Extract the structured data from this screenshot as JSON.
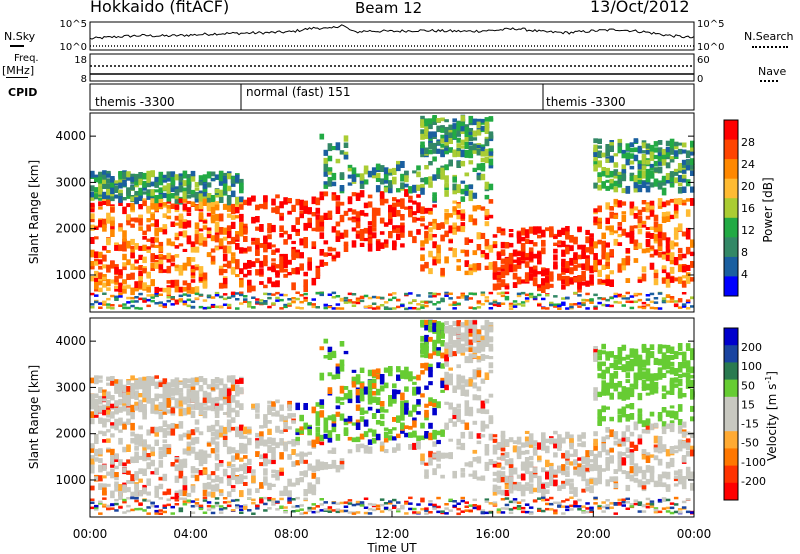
{
  "header": {
    "station": "Hokkaido (fitACF)",
    "beam": "Beam 12",
    "date": "13/Oct/2012"
  },
  "side_labels": {
    "nsky": "N.Sky",
    "freq": "Freq.",
    "freq_unit": "[MHz]",
    "cpid": "CPID",
    "nsearch": "N.Search",
    "nave": "Nave"
  },
  "chart_data": [
    {
      "type": "line",
      "panel": "N.Sky / N.Search",
      "ytick_labels_left": [
        "10^5",
        "10^0"
      ],
      "ytick_labels_right": [
        "10^5",
        "10^0"
      ],
      "y_scale": "log",
      "series": [
        {
          "x": [
            0,
            1,
            2,
            3,
            4,
            5,
            6,
            7,
            8,
            8.5,
            9,
            9.5,
            10,
            10.5,
            11,
            12,
            13,
            14,
            15,
            16,
            17,
            18,
            19,
            20,
            21,
            22,
            23,
            24
          ],
          "y": [
            1.8,
            2.2,
            2.5,
            2.4,
            2.6,
            2.9,
            3.0,
            3.1,
            3.3,
            3.8,
            4.2,
            3.9,
            4.8,
            3.2,
            3.5,
            3.4,
            3.6,
            3.5,
            3.4,
            3.6,
            4.0,
            3.3,
            3.1,
            3.5,
            3.8,
            3.3,
            2.5,
            2.0
          ]
        }
      ]
    },
    {
      "type": "line",
      "panel": "Freq / Nave",
      "ytick_labels_left": [
        "18",
        "8"
      ],
      "ytick_labels_right": [
        "60",
        "0"
      ],
      "series": [
        {
          "x": [
            0,
            24
          ],
          "y": [
            11,
            11
          ]
        },
        {
          "x": [
            0,
            24
          ],
          "y": [
            45,
            45
          ]
        }
      ]
    },
    {
      "type": "table",
      "panel": "CPID",
      "segments": [
        {
          "start": 0,
          "end": 6,
          "label": "themis -3300"
        },
        {
          "start": 6,
          "end": 18,
          "label": "normal (fast) 151"
        },
        {
          "start": 18,
          "end": 24,
          "label": "themis -3300"
        }
      ]
    },
    {
      "type": "heatmap",
      "panel": "Power",
      "ylabel": "Slant Range [km]",
      "ylim": [
        200,
        4500
      ],
      "yticks": [
        1000,
        2000,
        3000,
        4000
      ],
      "xlim": [
        0,
        24
      ],
      "colorbar": {
        "label": "Power [dB]",
        "tick_labels": [
          "28",
          "24",
          "20",
          "16",
          "12",
          "8",
          "4"
        ],
        "colors": [
          "#ff0000",
          "#ff4400",
          "#ff8800",
          "#ffbb33",
          "#aacc33",
          "#22aa44",
          "#338866",
          "#1a5fa0",
          "#0000ff"
        ]
      }
    },
    {
      "type": "heatmap",
      "panel": "Velocity",
      "ylabel": "Slant Range [km]",
      "ylim": [
        200,
        4500
      ],
      "yticks": [
        1000,
        2000,
        3000,
        4000
      ],
      "xlim": [
        0,
        24
      ],
      "xlabel": "Time UT",
      "xtick_labels": [
        "00:00",
        "04:00",
        "08:00",
        "12:00",
        "16:00",
        "20:00",
        "00:00"
      ],
      "colorbar": {
        "label": "Velocity [m s",
        "label_sup": "-1",
        "label_end": "]",
        "tick_labels": [
          "200",
          "100",
          "50",
          "15",
          "-15",
          "-50",
          "-100",
          "-200"
        ],
        "colors": [
          "#0000cc",
          "#1a44a0",
          "#2a7a50",
          "#66cc33",
          "#c8c8c0",
          "#c8c8c0",
          "#ffaa33",
          "#ff7700",
          "#ff3300",
          "#ff0000"
        ]
      }
    }
  ]
}
